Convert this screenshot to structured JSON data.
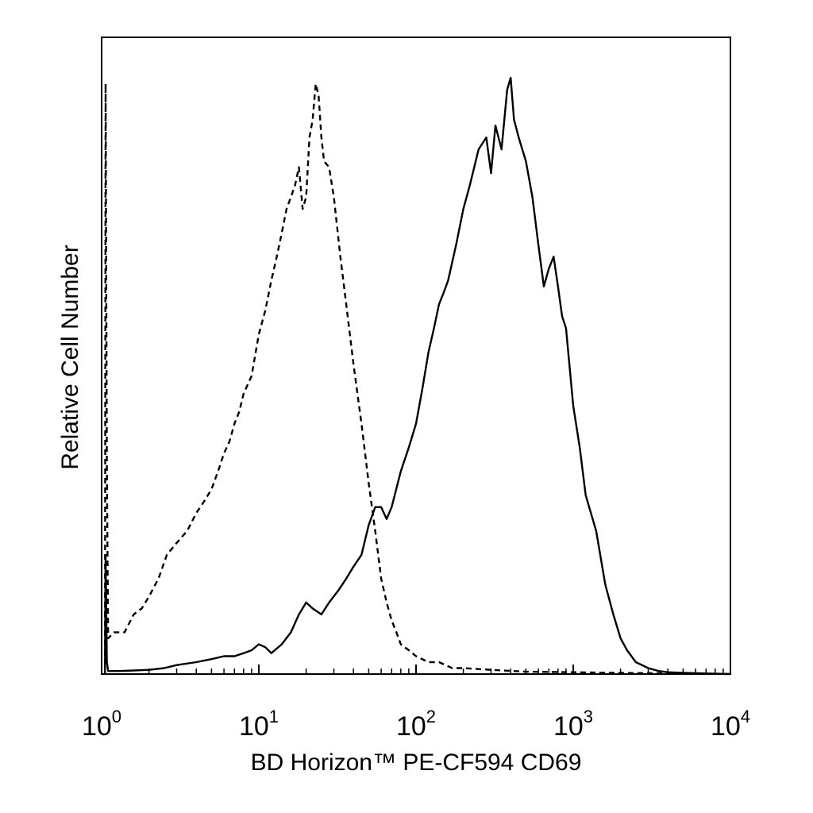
{
  "chart_data": {
    "type": "line",
    "title": "",
    "xlabel": "BD Horizon™ PE-CF594 CD69",
    "ylabel": "Relative Cell Number",
    "xscale": "log",
    "xlim": [
      1,
      10000
    ],
    "ylim": [
      0,
      1
    ],
    "grid": false,
    "legend": "none",
    "x_ticks": [
      {
        "base": "10",
        "exp": "0",
        "value": 1
      },
      {
        "base": "10",
        "exp": "1",
        "value": 10
      },
      {
        "base": "10",
        "exp": "2",
        "value": 100
      },
      {
        "base": "10",
        "exp": "3",
        "value": 1000
      },
      {
        "base": "10",
        "exp": "4",
        "value": 10000
      }
    ],
    "series": [
      {
        "style": "dashed",
        "color": "#000000",
        "x": [
          1.05,
          1.06,
          1.08,
          1.1,
          1.2,
          1.4,
          1.6,
          1.8,
          2.0,
          2.3,
          2.6,
          3.0,
          3.5,
          4.0,
          4.5,
          5.0,
          5.5,
          6.0,
          6.5,
          7.0,
          7.5,
          8.0,
          9.0,
          10.0,
          11.0,
          12.0,
          13.0,
          14.0,
          15.0,
          16.0,
          17.0,
          18.0,
          19.0,
          20.0,
          21.0,
          22.0,
          23.0,
          24.0,
          25.0,
          26.0,
          28.0,
          30.0,
          33.0,
          36.0,
          40.0,
          45.0,
          50.0,
          55.0,
          60.0,
          65.0,
          70.0,
          75.0,
          80.0,
          90.0,
          100.0,
          120.0,
          140.0,
          170.0,
          200.0,
          300.0,
          500.0,
          1000.0,
          2000.0,
          5000.0,
          10000.0
        ],
        "y": [
          0,
          0.99,
          0.35,
          0.06,
          0.07,
          0.07,
          0.1,
          0.11,
          0.13,
          0.16,
          0.2,
          0.22,
          0.24,
          0.27,
          0.29,
          0.31,
          0.34,
          0.37,
          0.39,
          0.42,
          0.44,
          0.47,
          0.5,
          0.57,
          0.61,
          0.66,
          0.7,
          0.74,
          0.78,
          0.8,
          0.82,
          0.85,
          0.78,
          0.8,
          0.9,
          0.93,
          0.99,
          0.97,
          0.9,
          0.86,
          0.85,
          0.8,
          0.7,
          0.62,
          0.52,
          0.42,
          0.32,
          0.24,
          0.16,
          0.12,
          0.09,
          0.07,
          0.05,
          0.04,
          0.03,
          0.02,
          0.02,
          0.01,
          0.01,
          0.007,
          0.004,
          0.003,
          0.002,
          0.001,
          0.0
        ]
      },
      {
        "style": "solid",
        "color": "#000000",
        "x": [
          1.05,
          1.06,
          1.08,
          1.1,
          1.3,
          1.6,
          2.0,
          2.5,
          3.0,
          4.0,
          5.0,
          6.0,
          7.0,
          8.0,
          9.0,
          10.0,
          11.0,
          12.0,
          14.0,
          16.0,
          18.0,
          20.0,
          22.0,
          25.0,
          28.0,
          32.0,
          36.0,
          40.0,
          45.0,
          50.0,
          55.0,
          60.0,
          65.0,
          70.0,
          80.0,
          90.0,
          100.0,
          110.0,
          120.0,
          130.0,
          140.0,
          150.0,
          160.0,
          180.0,
          200.0,
          220.0,
          250.0,
          280.0,
          300.0,
          320.0,
          350.0,
          380.0,
          400.0,
          420.0,
          450.0,
          500.0,
          550.0,
          600.0,
          650.0,
          700.0,
          750.0,
          800.0,
          850.0,
          900.0,
          1000.0,
          1100.0,
          1200.0,
          1400.0,
          1600.0,
          1800.0,
          2000.0,
          2200.0,
          2500.0,
          3000.0,
          3500.0,
          4000.0,
          5000.0,
          7000.0,
          10000.0
        ],
        "y": [
          0,
          0.2,
          0.02,
          0.005,
          0.005,
          0.006,
          0.007,
          0.01,
          0.015,
          0.02,
          0.025,
          0.03,
          0.03,
          0.035,
          0.04,
          0.05,
          0.045,
          0.035,
          0.05,
          0.07,
          0.1,
          0.12,
          0.11,
          0.1,
          0.12,
          0.14,
          0.16,
          0.18,
          0.2,
          0.25,
          0.28,
          0.28,
          0.26,
          0.28,
          0.34,
          0.38,
          0.42,
          0.48,
          0.54,
          0.58,
          0.62,
          0.64,
          0.66,
          0.72,
          0.78,
          0.82,
          0.88,
          0.9,
          0.84,
          0.92,
          0.88,
          0.98,
          1.0,
          0.93,
          0.9,
          0.86,
          0.8,
          0.72,
          0.65,
          0.68,
          0.7,
          0.65,
          0.6,
          0.58,
          0.45,
          0.38,
          0.3,
          0.24,
          0.15,
          0.1,
          0.06,
          0.04,
          0.02,
          0.01,
          0.005,
          0.003,
          0.002,
          0.001,
          0.0
        ]
      }
    ]
  }
}
